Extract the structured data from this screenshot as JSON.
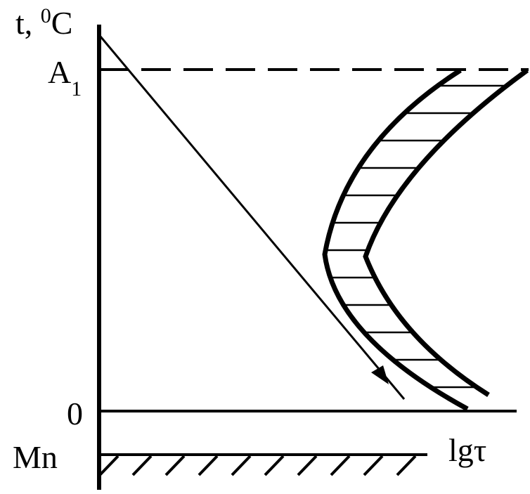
{
  "labels": {
    "y_axis": "t, ",
    "y_axis_sup": "0",
    "y_axis_unit": "C",
    "a1": "A",
    "a1_sub": "1",
    "zero": "0",
    "mn": "Mn",
    "x_axis": "lgτ"
  },
  "colors": {
    "ink": "#000000",
    "background": "#ffffff"
  }
}
